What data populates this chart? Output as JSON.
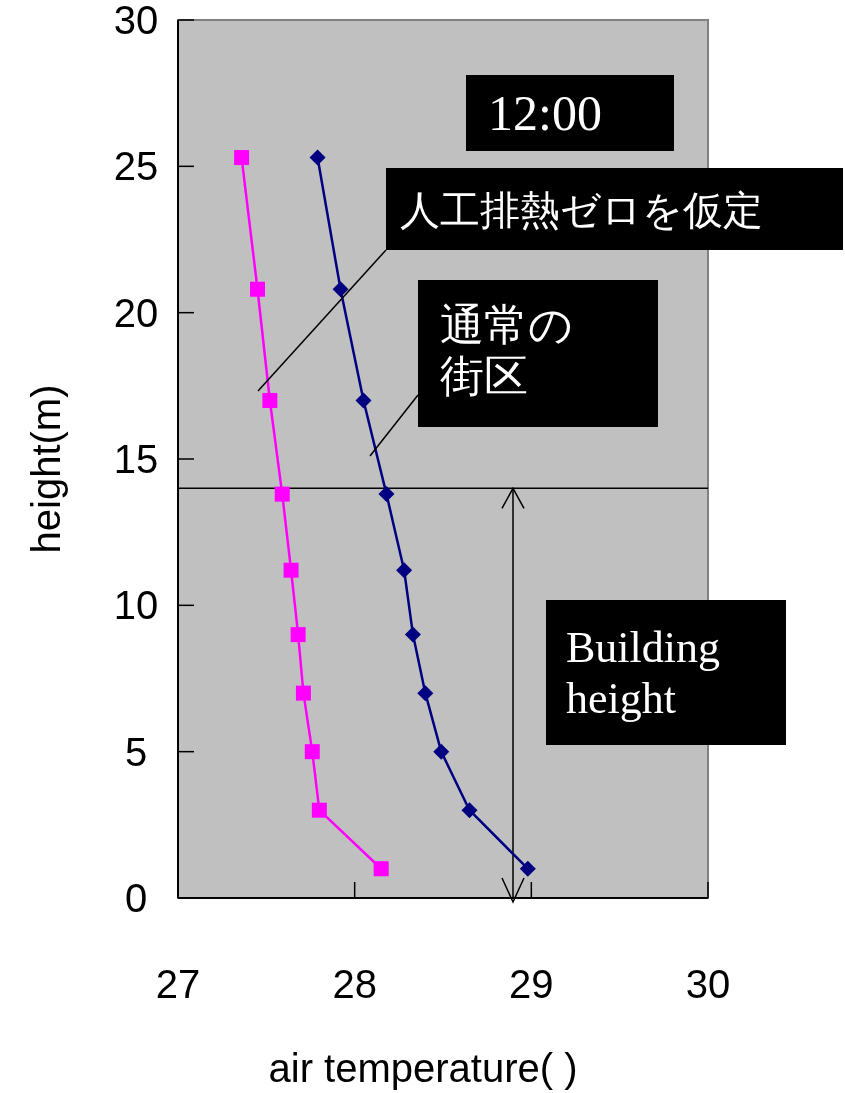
{
  "chart_data": {
    "type": "line",
    "xlabel": "air temperature(   )",
    "ylabel": "height(m)",
    "xlim": [
      27,
      30
    ],
    "xticks": [
      27,
      28,
      29,
      30
    ],
    "ylim": [
      0,
      30
    ],
    "yticks": [
      0,
      5,
      10,
      15,
      20,
      25,
      30
    ],
    "grid": false,
    "line_style": "solid",
    "series": [
      {
        "color": "#ff00ff",
        "marker": "square",
        "x": [
          28.15,
          27.8,
          27.76,
          27.71,
          27.68,
          27.64,
          27.59,
          27.52,
          27.45,
          27.36
        ],
        "values": [
          1,
          3,
          5,
          7,
          9,
          11.2,
          13.8,
          17,
          20.8,
          25.3
        ]
      },
      {
        "color": "#000080",
        "marker": "diamond",
        "x": [
          28.98,
          28.65,
          28.49,
          28.4,
          28.33,
          28.28,
          28.18,
          28.05,
          27.92,
          27.79
        ],
        "values": [
          1,
          3,
          5,
          7,
          9,
          11.2,
          13.8,
          17,
          20.8,
          25.3
        ]
      }
    ],
    "ref_lines": [
      {
        "axis": "y",
        "value": 14,
        "color": "#000000"
      }
    ],
    "annotations": [
      "12:00",
      "人工排熱ゼロを仮定",
      "通常の街区",
      "Building height"
    ]
  }
}
